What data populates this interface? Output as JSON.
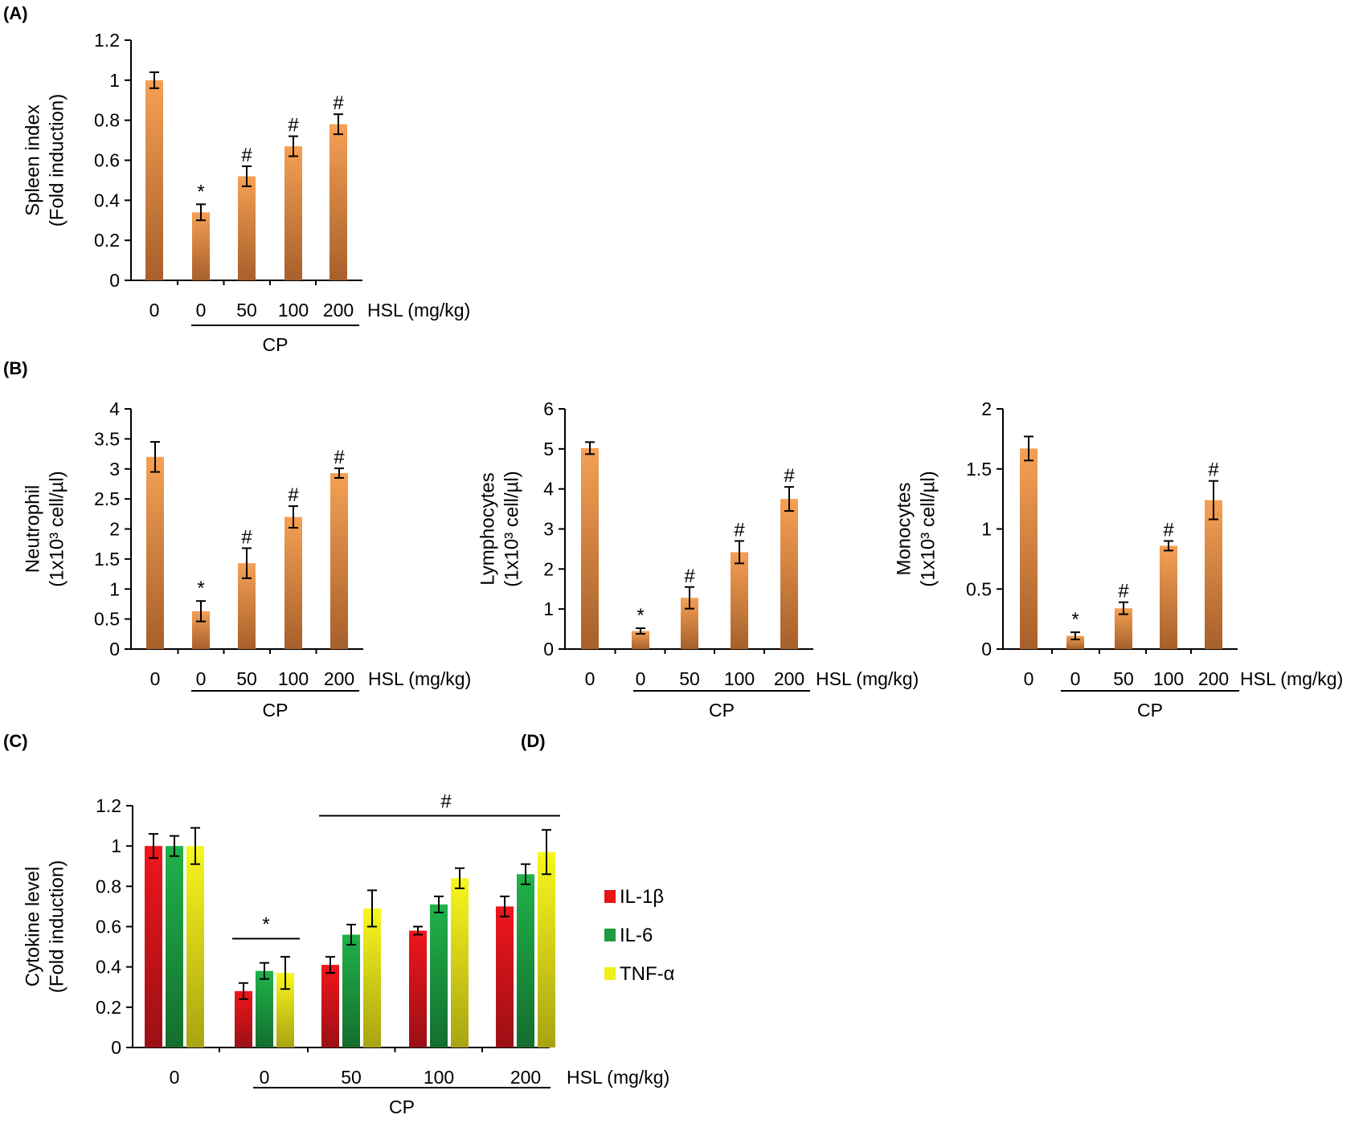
{
  "panel_labels": [
    "(A)",
    "(B)",
    "(C)",
    "(D)"
  ],
  "chart_data": [
    {
      "id": "A",
      "type": "bar",
      "panel_label": "(A)",
      "ylabel_lines": [
        "Spleen index",
        "(Fold induction)"
      ],
      "ylim": [
        0,
        1.2
      ],
      "yticks": [
        "0",
        "0.2",
        "0.4",
        "0.6",
        "0.8",
        "1",
        "1.2"
      ],
      "ytick_values": [
        0,
        0.2,
        0.4,
        0.6,
        0.8,
        1.0,
        1.2
      ],
      "categories": [
        "0",
        "0",
        "50",
        "100",
        "200"
      ],
      "values": [
        1.0,
        0.34,
        0.52,
        0.67,
        0.78
      ],
      "errors": [
        0.04,
        0.04,
        0.05,
        0.05,
        0.05
      ],
      "marks": [
        "",
        "*",
        "#",
        "#",
        "#"
      ],
      "xunit": "HSL (mg/kg)",
      "group_label": "CP",
      "group_range": [
        1,
        4
      ]
    },
    {
      "id": "B1",
      "type": "bar",
      "panel_label": "(B)",
      "ylabel_lines": [
        "Neutrophil",
        "(1x10³ cell/µl)"
      ],
      "ylim": [
        0,
        4
      ],
      "yticks": [
        "0",
        "0.5",
        "1",
        "1.5",
        "2",
        "2.5",
        "3",
        "3.5",
        "4"
      ],
      "ytick_values": [
        0,
        0.5,
        1,
        1.5,
        2,
        2.5,
        3,
        3.5,
        4
      ],
      "categories": [
        "0",
        "0",
        "50",
        "100",
        "200"
      ],
      "values": [
        3.2,
        0.63,
        1.43,
        2.2,
        2.93
      ],
      "errors": [
        0.25,
        0.17,
        0.25,
        0.18,
        0.08
      ],
      "marks": [
        "",
        "*",
        "#",
        "#",
        "#"
      ],
      "xunit": "HSL (mg/kg)",
      "group_label": "CP",
      "group_range": [
        1,
        4
      ]
    },
    {
      "id": "B2",
      "type": "bar",
      "ylabel_lines": [
        "Lymphocytes",
        "(1x10³ cell/µl)"
      ],
      "ylim": [
        0,
        6
      ],
      "yticks": [
        "0",
        "1",
        "2",
        "3",
        "4",
        "5",
        "6"
      ],
      "ytick_values": [
        0,
        1,
        2,
        3,
        4,
        5,
        6
      ],
      "categories": [
        "0",
        "0",
        "50",
        "100",
        "200"
      ],
      "values": [
        5.02,
        0.45,
        1.28,
        2.42,
        3.75
      ],
      "errors": [
        0.15,
        0.07,
        0.27,
        0.28,
        0.3
      ],
      "marks": [
        "",
        "*",
        "#",
        "#",
        "#"
      ],
      "xunit": "HSL (mg/kg)",
      "group_label": "CP",
      "group_range": [
        1,
        4
      ]
    },
    {
      "id": "B3",
      "type": "bar",
      "ylabel_lines": [
        "Monocytes",
        "(1x10³ cell/µl)"
      ],
      "ylim": [
        0,
        2
      ],
      "yticks": [
        "0",
        "0.5",
        "1",
        "1.5",
        "2"
      ],
      "ytick_values": [
        0,
        0.5,
        1,
        1.5,
        2
      ],
      "categories": [
        "0",
        "0",
        "50",
        "100",
        "200"
      ],
      "values": [
        1.67,
        0.11,
        0.34,
        0.86,
        1.24
      ],
      "errors": [
        0.1,
        0.03,
        0.05,
        0.04,
        0.16
      ],
      "marks": [
        "",
        "*",
        "#",
        "#",
        "#"
      ],
      "xunit": "HSL (mg/kg)",
      "group_label": "CP",
      "group_range": [
        1,
        4
      ]
    },
    {
      "id": "C",
      "type": "bar",
      "panel_label": "(C)",
      "ylabel_lines": [
        "Cytokine level",
        "(Fold induction)"
      ],
      "ylim": [
        0,
        1.2
      ],
      "yticks": [
        "0",
        "0.2",
        "0.4",
        "0.6",
        "0.8",
        "1",
        "1.2"
      ],
      "ytick_values": [
        0,
        0.2,
        0.4,
        0.6,
        0.8,
        1.0,
        1.2
      ],
      "categories": [
        "0",
        "0",
        "50",
        "100",
        "200"
      ],
      "series": [
        {
          "name": "IL-1β",
          "values": [
            1.0,
            0.28,
            0.41,
            0.58,
            0.7
          ],
          "errors": [
            0.06,
            0.04,
            0.04,
            0.02,
            0.05
          ],
          "color": "#e8141a"
        },
        {
          "name": "IL-6",
          "values": [
            1.0,
            0.38,
            0.56,
            0.71,
            0.86
          ],
          "errors": [
            0.05,
            0.04,
            0.05,
            0.04,
            0.05
          ],
          "color": "#1f9a3f"
        },
        {
          "name": "TNF-α",
          "values": [
            1.0,
            0.37,
            0.69,
            0.84,
            0.97
          ],
          "errors": [
            0.09,
            0.08,
            0.09,
            0.05,
            0.11
          ],
          "color": "#f0ef1a"
        }
      ],
      "marks": {
        "star": "*",
        "hash": "#"
      },
      "xunit": "HSL (mg/kg)",
      "group_label": "CP",
      "group_range": [
        1,
        4
      ],
      "legend_position": "right"
    }
  ],
  "colors": {
    "bar_top": "#f5a055",
    "bar_bottom": "#a7602a"
  }
}
